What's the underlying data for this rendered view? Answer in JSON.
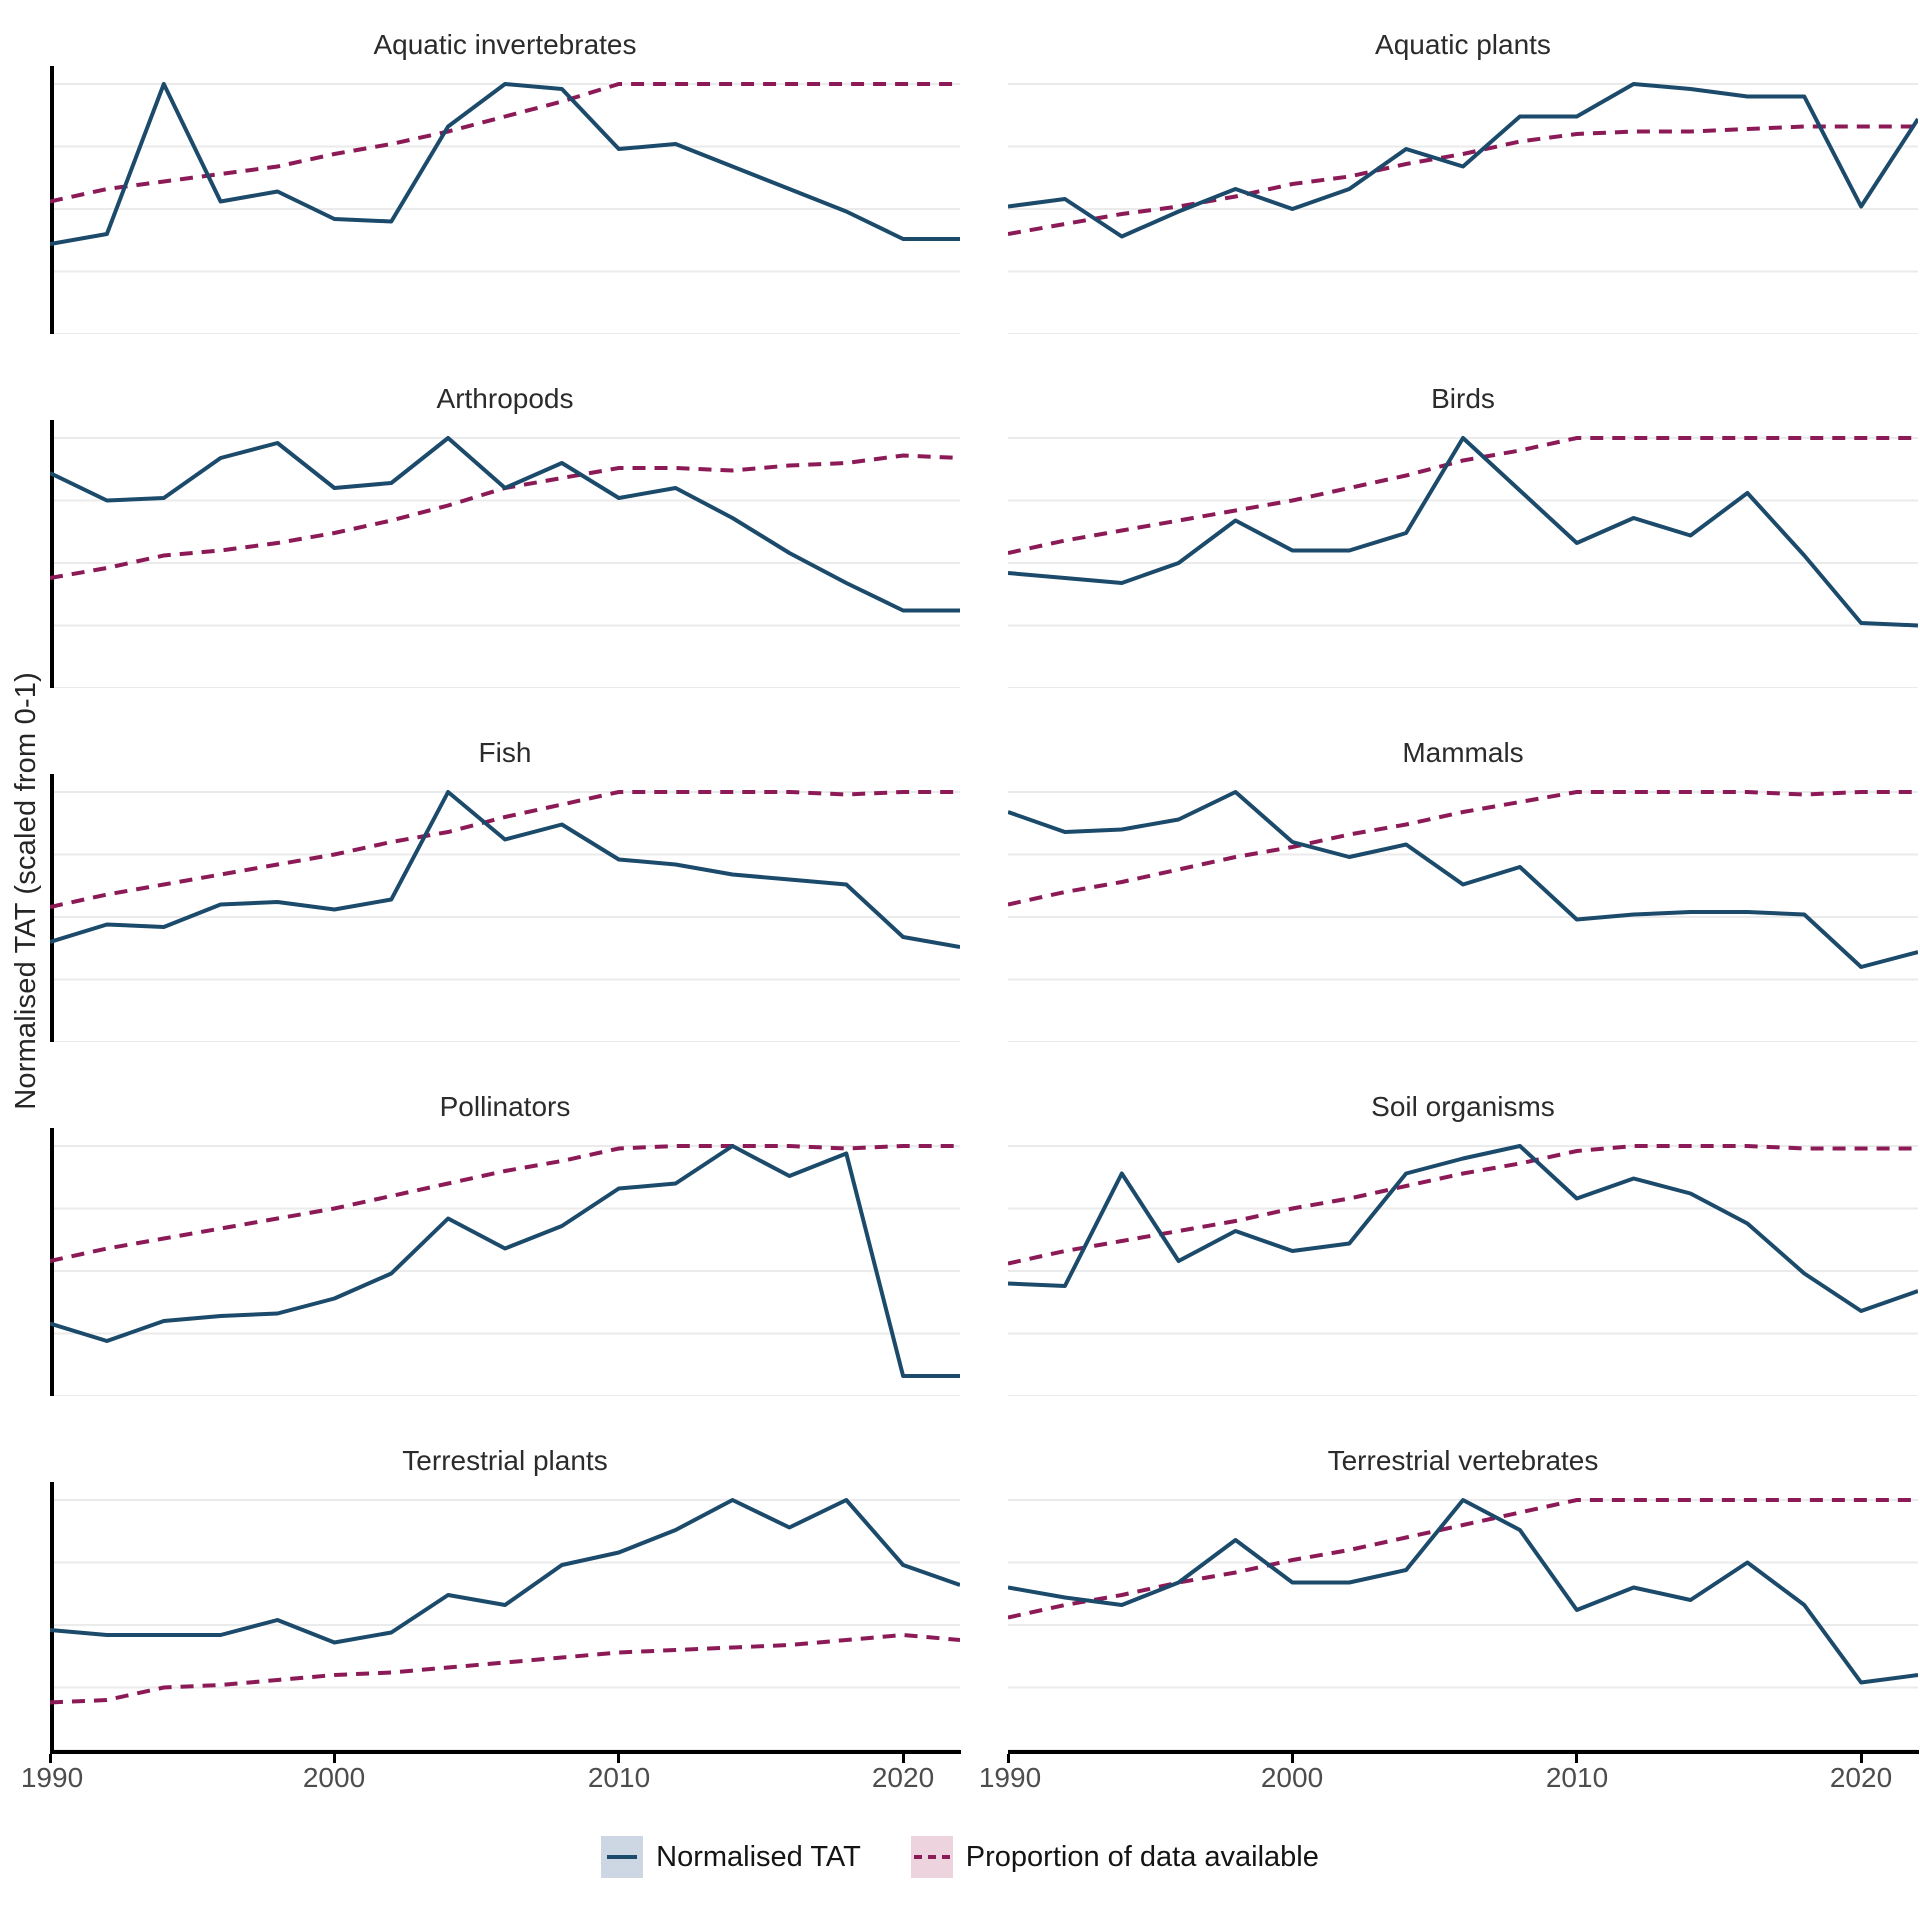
{
  "figure": {
    "ylabel": "Normalised TAT (scaled from 0-1)",
    "x_ticks": [
      "1990",
      "2000",
      "2010",
      "2020"
    ],
    "grid_color": "#ebebeb",
    "grid_levels": [
      0,
      0.25,
      0.5,
      0.75,
      1.0
    ],
    "axis_color": "#000000",
    "legend": [
      {
        "label": "Normalised TAT",
        "style": "solid",
        "line_color": "#1b4a6b",
        "key_fill": "#ccd7e3"
      },
      {
        "label": "Proportion of data available",
        "style": "dashed",
        "line_color": "#8c1a56",
        "key_fill": "#edd3de"
      }
    ]
  },
  "chart_data": {
    "type": "line",
    "title": "",
    "xlabel": "",
    "ylabel": "Normalised TAT (scaled from 0-1)",
    "x_range": [
      1990,
      2022
    ],
    "y_range": [
      0,
      1
    ],
    "grid": true,
    "legend_position": "bottom",
    "x": [
      1990,
      1992,
      1994,
      1996,
      1998,
      2000,
      2002,
      2004,
      2006,
      2008,
      2010,
      2012,
      2014,
      2016,
      2018,
      2020,
      2022
    ],
    "series_names": [
      "Normalised TAT",
      "Proportion of data available"
    ],
    "facets": [
      {
        "title": "Aquatic invertebrates",
        "tat": [
          0.36,
          0.4,
          1.0,
          0.53,
          0.57,
          0.46,
          0.45,
          0.83,
          1.0,
          0.98,
          0.74,
          0.76,
          0.67,
          0.58,
          0.49,
          0.38,
          0.38
        ],
        "prop": [
          0.53,
          0.58,
          0.61,
          0.64,
          0.67,
          0.72,
          0.76,
          0.81,
          0.87,
          0.93,
          1.0,
          1.0,
          1.0,
          1.0,
          1.0,
          1.0,
          1.0
        ]
      },
      {
        "title": "Aquatic plants",
        "tat": [
          0.51,
          0.54,
          0.39,
          0.49,
          0.58,
          0.5,
          0.58,
          0.74,
          0.67,
          0.87,
          0.87,
          1.0,
          0.98,
          0.95,
          0.95,
          0.51,
          0.86
        ],
        "prop": [
          0.4,
          0.44,
          0.48,
          0.51,
          0.55,
          0.6,
          0.63,
          0.68,
          0.72,
          0.77,
          0.8,
          0.81,
          0.81,
          0.82,
          0.83,
          0.83,
          0.83
        ]
      },
      {
        "title": "Arthropods",
        "tat": [
          0.86,
          0.75,
          0.76,
          0.92,
          0.98,
          0.8,
          0.82,
          1.0,
          0.8,
          0.9,
          0.76,
          0.8,
          0.68,
          0.54,
          0.42,
          0.31,
          0.31
        ],
        "prop": [
          0.44,
          0.48,
          0.53,
          0.55,
          0.58,
          0.62,
          0.67,
          0.73,
          0.8,
          0.84,
          0.88,
          0.88,
          0.87,
          0.89,
          0.9,
          0.93,
          0.92
        ]
      },
      {
        "title": "Birds",
        "tat": [
          0.46,
          0.44,
          0.42,
          0.5,
          0.67,
          0.55,
          0.55,
          0.62,
          1.0,
          0.79,
          0.58,
          0.68,
          0.61,
          0.78,
          0.53,
          0.26,
          0.25
        ],
        "prop": [
          0.54,
          0.59,
          0.63,
          0.67,
          0.71,
          0.75,
          0.8,
          0.85,
          0.91,
          0.95,
          1.0,
          1.0,
          1.0,
          1.0,
          1.0,
          1.0,
          1.0
        ]
      },
      {
        "title": "Fish",
        "tat": [
          0.4,
          0.47,
          0.46,
          0.55,
          0.56,
          0.53,
          0.57,
          1.0,
          0.81,
          0.87,
          0.73,
          0.71,
          0.67,
          0.65,
          0.63,
          0.42,
          0.38
        ],
        "prop": [
          0.54,
          0.59,
          0.63,
          0.67,
          0.71,
          0.75,
          0.8,
          0.84,
          0.9,
          0.95,
          1.0,
          1.0,
          1.0,
          1.0,
          0.99,
          1.0,
          1.0
        ]
      },
      {
        "title": "Mammals",
        "tat": [
          0.92,
          0.84,
          0.85,
          0.89,
          1.0,
          0.8,
          0.74,
          0.79,
          0.63,
          0.7,
          0.49,
          0.51,
          0.52,
          0.52,
          0.51,
          0.3,
          0.36
        ],
        "prop": [
          0.55,
          0.6,
          0.64,
          0.69,
          0.74,
          0.78,
          0.83,
          0.87,
          0.92,
          0.96,
          1.0,
          1.0,
          1.0,
          1.0,
          0.99,
          1.0,
          1.0
        ]
      },
      {
        "title": "Pollinators",
        "tat": [
          0.29,
          0.22,
          0.3,
          0.32,
          0.33,
          0.39,
          0.49,
          0.71,
          0.59,
          0.68,
          0.83,
          0.85,
          1.0,
          0.88,
          0.97,
          0.08,
          0.08
        ],
        "prop": [
          0.54,
          0.59,
          0.63,
          0.67,
          0.71,
          0.75,
          0.8,
          0.85,
          0.9,
          0.94,
          0.99,
          1.0,
          1.0,
          1.0,
          0.99,
          1.0,
          1.0
        ]
      },
      {
        "title": "Soil organisms",
        "tat": [
          0.45,
          0.44,
          0.89,
          0.54,
          0.66,
          0.58,
          0.61,
          0.89,
          0.95,
          1.0,
          0.79,
          0.87,
          0.81,
          0.69,
          0.49,
          0.34,
          0.42
        ],
        "prop": [
          0.53,
          0.58,
          0.62,
          0.66,
          0.7,
          0.75,
          0.79,
          0.84,
          0.89,
          0.93,
          0.98,
          1.0,
          1.0,
          1.0,
          0.99,
          0.99,
          0.99
        ]
      },
      {
        "title": "Terrestrial plants",
        "tat": [
          0.48,
          0.46,
          0.46,
          0.46,
          0.52,
          0.43,
          0.47,
          0.62,
          0.58,
          0.74,
          0.79,
          0.88,
          1.0,
          0.89,
          1.0,
          0.74,
          0.66
        ],
        "prop": [
          0.19,
          0.2,
          0.25,
          0.26,
          0.28,
          0.3,
          0.31,
          0.33,
          0.35,
          0.37,
          0.39,
          0.4,
          0.41,
          0.42,
          0.44,
          0.46,
          0.44
        ]
      },
      {
        "title": "Terrestrial vertebrates",
        "tat": [
          0.65,
          0.61,
          0.58,
          0.67,
          0.84,
          0.67,
          0.67,
          0.72,
          1.0,
          0.88,
          0.56,
          0.65,
          0.6,
          0.75,
          0.58,
          0.27,
          0.3
        ],
        "prop": [
          0.53,
          0.58,
          0.62,
          0.67,
          0.71,
          0.76,
          0.8,
          0.85,
          0.9,
          0.95,
          1.0,
          1.0,
          1.0,
          1.0,
          1.0,
          1.0,
          1.0
        ]
      }
    ]
  }
}
